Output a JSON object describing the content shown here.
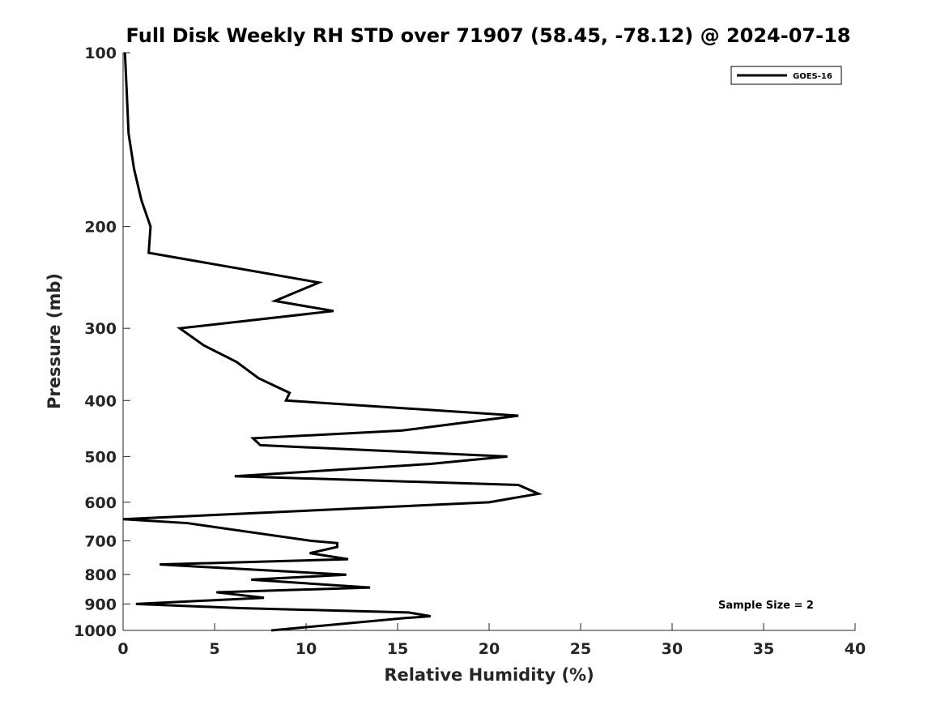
{
  "chart_data": {
    "type": "line",
    "title": "Full Disk Weekly RH STD over 71907 (58.45, -78.12) @ 2024-07-18",
    "xlabel": "Relative Humidity (%)",
    "ylabel": "Pressure (mb)",
    "xlim": [
      0,
      40
    ],
    "ylim": [
      100,
      1000
    ],
    "y_scale": "log",
    "y_reversed": true,
    "grid": false,
    "legend_position": "top-right",
    "x_ticks": [
      "0",
      "5",
      "10",
      "15",
      "20",
      "25",
      "30",
      "35",
      "40"
    ],
    "y_ticks": [
      "100",
      "200",
      "300",
      "400",
      "500",
      "600",
      "700",
      "800",
      "900",
      "1000"
    ],
    "annotation": "Sample Size = 2",
    "line_color": "#000000",
    "series": [
      {
        "name": "GOES-16",
        "x": [
          0.1,
          0.2,
          0.3,
          0.6,
          1.0,
          1.5,
          1.5,
          1.4,
          10.7,
          8.3,
          11.5,
          3.1,
          4.4,
          6.2,
          7.4,
          9.1,
          8.9,
          21.6,
          15.2,
          7.1,
          7.5,
          21.0,
          16.8,
          6.1,
          21.6,
          22.7,
          20.0,
          0.0,
          3.5,
          10.3,
          11.7,
          11.7,
          10.2,
          12.3,
          2.0,
          12.2,
          7.0,
          13.5,
          5.1,
          7.7,
          0.7,
          6.4,
          15.6,
          16.8,
          15.4,
          8.1
        ],
        "y": [
          100,
          117,
          138,
          159,
          180,
          200,
          200,
          222,
          250,
          269,
          280,
          300,
          321,
          343,
          366,
          388,
          400,
          425,
          451,
          465,
          478,
          500,
          515,
          541,
          560,
          580,
          600,
          642,
          652,
          700,
          706,
          717,
          735,
          753,
          769,
          801,
          817,
          843,
          859,
          878,
          900,
          915,
          931,
          945,
          952,
          1000
        ]
      }
    ]
  }
}
